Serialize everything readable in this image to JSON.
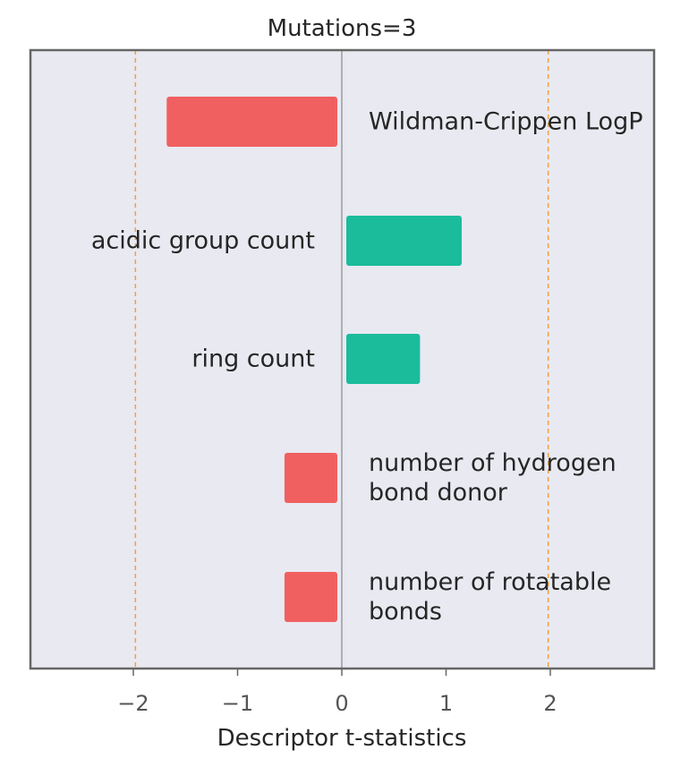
{
  "chart_data": {
    "type": "bar",
    "orientation": "horizontal",
    "title": "Mutations=3",
    "xlabel": "Descriptor t-statistics",
    "ylabel": "",
    "xlim": [
      -3,
      3
    ],
    "xticks": [
      -2,
      -1,
      0,
      1,
      2
    ],
    "xtick_labels": [
      "−2",
      "−1",
      "0",
      "1",
      "2"
    ],
    "reference_lines": [
      -1.98,
      1.98
    ],
    "grid": false,
    "legend": "none",
    "bars": [
      {
        "label_lines": [
          "Wildman-Crippen LogP"
        ],
        "value": -1.68
      },
      {
        "label_lines": [
          "acidic group count"
        ],
        "value": 1.15
      },
      {
        "label_lines": [
          "ring count"
        ],
        "value": 0.75
      },
      {
        "label_lines": [
          "number of hydrogen",
          "bond donor"
        ],
        "value": -0.55
      },
      {
        "label_lines": [
          "number of rotatable",
          "bonds"
        ],
        "value": -0.55
      }
    ],
    "colors": {
      "positive": "#1abc9c",
      "negative": "#f06060",
      "reference_line": "#f0a040",
      "background": "#e9e9f1",
      "frame": "#666666"
    }
  }
}
